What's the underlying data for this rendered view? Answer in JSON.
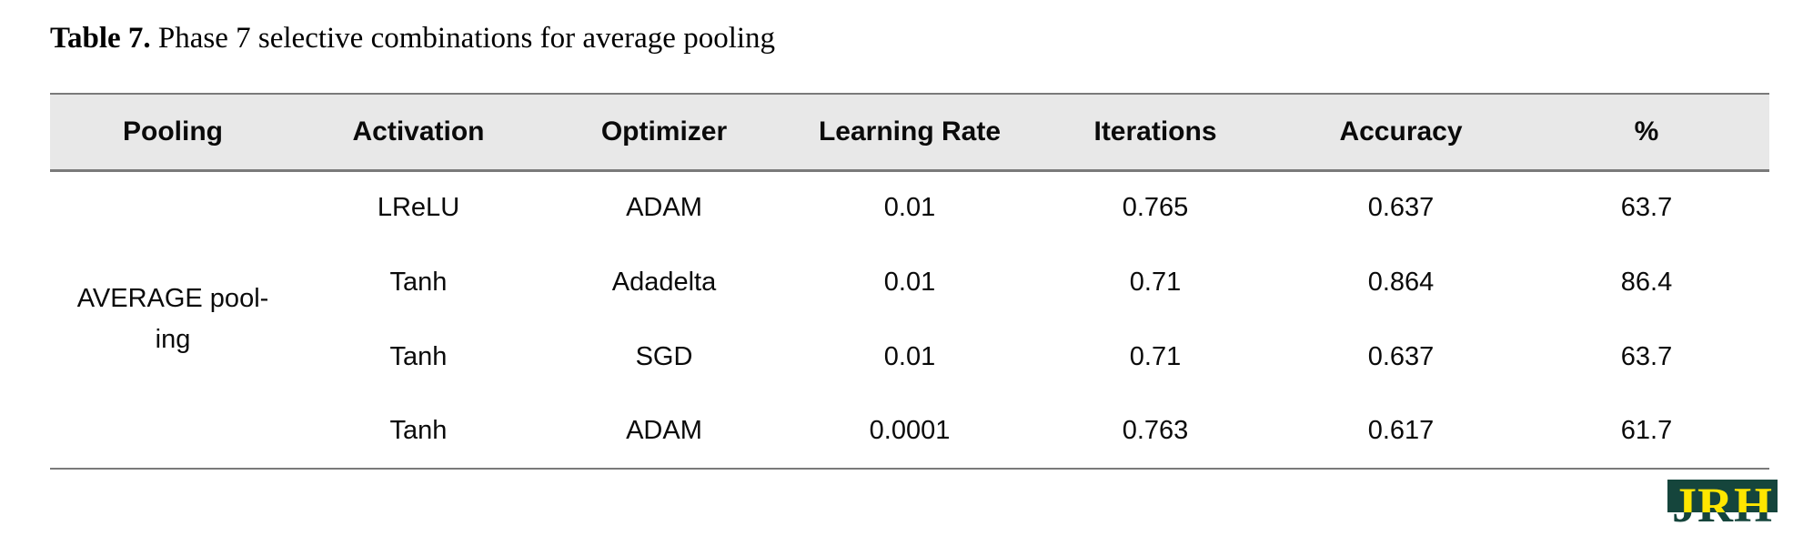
{
  "title": {
    "prefix": "Table 7.",
    "text": " Phase 7 selective combinations for average pooling"
  },
  "table": {
    "headers": [
      "Pooling",
      "Activation",
      "Optimizer",
      "Learning Rate",
      "Iterations",
      "Accuracy",
      "%"
    ],
    "pooling_group_label": "AVERAGE pool-\ning",
    "rows": [
      {
        "activation": "LReLU",
        "optimizer": "ADAM",
        "learning_rate": "0.01",
        "iterations": "0.765",
        "accuracy": "0.637",
        "percent": "63.7"
      },
      {
        "activation": "Tanh",
        "optimizer": "Adadelta",
        "learning_rate": "0.01",
        "iterations": "0.71",
        "accuracy": "0.864",
        "percent": "86.4"
      },
      {
        "activation": "Tanh",
        "optimizer": "SGD",
        "learning_rate": "0.01",
        "iterations": "0.71",
        "accuracy": "0.637",
        "percent": "63.7"
      },
      {
        "activation": "Tanh",
        "optimizer": "ADAM",
        "learning_rate": "0.0001",
        "iterations": "0.763",
        "accuracy": "0.617",
        "percent": "61.7"
      }
    ]
  },
  "logo": {
    "text": "JRH",
    "green": "#15453c",
    "yellow": "#ffe600"
  },
  "colors": {
    "header_bg": "#e8e8e8",
    "rule": "#7a7a7a",
    "text": "#000000"
  }
}
